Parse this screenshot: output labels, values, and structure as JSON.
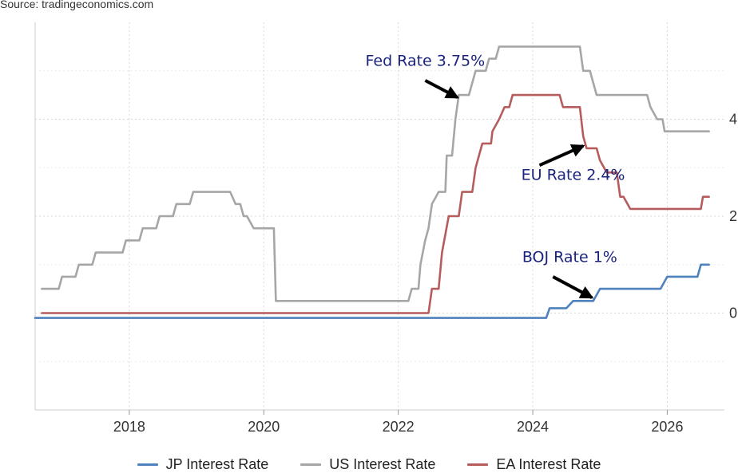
{
  "source": "Source: tradingeconomics.com",
  "chart_data": {
    "type": "line",
    "title": "",
    "xlabel": "",
    "ylabel": "",
    "xlim": [
      2016.6,
      2026.85
    ],
    "ylim": [
      -2,
      6
    ],
    "x_ticks": [
      "2018",
      "2020",
      "2022",
      "2024",
      "2026"
    ],
    "y_ticks": [
      "0",
      "2",
      "4"
    ],
    "grid": true,
    "legend_position": "bottom",
    "series": [
      {
        "name": "JP Interest Rate",
        "color": "#4f81bd",
        "points": [
          [
            2016.6,
            -0.1
          ],
          [
            2024.2,
            -0.1
          ],
          [
            2024.25,
            0.1
          ],
          [
            2024.5,
            0.1
          ],
          [
            2024.6,
            0.25
          ],
          [
            2024.9,
            0.25
          ],
          [
            2025.0,
            0.5
          ],
          [
            2025.9,
            0.5
          ],
          [
            2026.0,
            0.75
          ],
          [
            2026.45,
            0.75
          ],
          [
            2026.5,
            1.0
          ],
          [
            2026.62,
            1.0
          ]
        ]
      },
      {
        "name": "US Interest Rate",
        "color": "#a6a6a6",
        "points": [
          [
            2016.7,
            0.5
          ],
          [
            2016.95,
            0.5
          ],
          [
            2017.0,
            0.75
          ],
          [
            2017.2,
            0.75
          ],
          [
            2017.25,
            1.0
          ],
          [
            2017.45,
            1.0
          ],
          [
            2017.5,
            1.25
          ],
          [
            2017.9,
            1.25
          ],
          [
            2017.95,
            1.5
          ],
          [
            2018.15,
            1.5
          ],
          [
            2018.2,
            1.75
          ],
          [
            2018.4,
            1.75
          ],
          [
            2018.45,
            2.0
          ],
          [
            2018.65,
            2.0
          ],
          [
            2018.7,
            2.25
          ],
          [
            2018.9,
            2.25
          ],
          [
            2018.95,
            2.5
          ],
          [
            2019.5,
            2.5
          ],
          [
            2019.58,
            2.25
          ],
          [
            2019.65,
            2.25
          ],
          [
            2019.7,
            2.0
          ],
          [
            2019.75,
            2.0
          ],
          [
            2019.85,
            1.75
          ],
          [
            2020.15,
            1.75
          ],
          [
            2020.18,
            0.25
          ],
          [
            2022.15,
            0.25
          ],
          [
            2022.2,
            0.5
          ],
          [
            2022.3,
            0.5
          ],
          [
            2022.33,
            1.0
          ],
          [
            2022.4,
            1.5
          ],
          [
            2022.45,
            1.75
          ],
          [
            2022.5,
            2.25
          ],
          [
            2022.6,
            2.5
          ],
          [
            2022.7,
            2.5
          ],
          [
            2022.72,
            3.25
          ],
          [
            2022.8,
            3.25
          ],
          [
            2022.85,
            4.0
          ],
          [
            2022.9,
            4.5
          ],
          [
            2023.05,
            4.5
          ],
          [
            2023.1,
            4.75
          ],
          [
            2023.15,
            5.0
          ],
          [
            2023.3,
            5.0
          ],
          [
            2023.35,
            5.25
          ],
          [
            2023.45,
            5.25
          ],
          [
            2023.5,
            5.5
          ],
          [
            2024.7,
            5.5
          ],
          [
            2024.75,
            5.0
          ],
          [
            2024.85,
            5.0
          ],
          [
            2024.9,
            4.75
          ],
          [
            2024.95,
            4.5
          ],
          [
            2025.7,
            4.5
          ],
          [
            2025.75,
            4.25
          ],
          [
            2025.85,
            4.0
          ],
          [
            2025.93,
            4.0
          ],
          [
            2025.96,
            3.75
          ],
          [
            2026.62,
            3.75
          ]
        ]
      },
      {
        "name": "EA Interest Rate",
        "color": "#b65c5c",
        "points": [
          [
            2016.7,
            0.0
          ],
          [
            2022.45,
            0.0
          ],
          [
            2022.5,
            0.5
          ],
          [
            2022.6,
            0.5
          ],
          [
            2022.65,
            1.25
          ],
          [
            2022.75,
            2.0
          ],
          [
            2022.9,
            2.0
          ],
          [
            2022.95,
            2.5
          ],
          [
            2023.1,
            2.5
          ],
          [
            2023.15,
            3.0
          ],
          [
            2023.25,
            3.5
          ],
          [
            2023.38,
            3.5
          ],
          [
            2023.4,
            3.75
          ],
          [
            2023.5,
            4.0
          ],
          [
            2023.58,
            4.25
          ],
          [
            2023.65,
            4.25
          ],
          [
            2023.7,
            4.5
          ],
          [
            2024.4,
            4.5
          ],
          [
            2024.45,
            4.25
          ],
          [
            2024.7,
            4.25
          ],
          [
            2024.75,
            3.65
          ],
          [
            2024.8,
            3.4
          ],
          [
            2024.95,
            3.4
          ],
          [
            2025.0,
            3.15
          ],
          [
            2025.1,
            2.9
          ],
          [
            2025.25,
            2.9
          ],
          [
            2025.3,
            2.4
          ],
          [
            2025.35,
            2.4
          ],
          [
            2025.45,
            2.15
          ],
          [
            2026.5,
            2.15
          ],
          [
            2026.53,
            2.4
          ],
          [
            2026.62,
            2.4
          ]
        ]
      }
    ],
    "annotations": [
      {
        "text": "Fed Rate 3.75%",
        "color": "#1a237e",
        "x": 2022.4,
        "y": 5.1,
        "arrow_from": [
          2022.4,
          4.8
        ],
        "arrow_to": [
          2022.88,
          4.45
        ]
      },
      {
        "text": "EU Rate 2.4%",
        "color": "#1a237e",
        "x": 2024.6,
        "y": 2.75,
        "arrow_from": [
          2024.1,
          3.05
        ],
        "arrow_to": [
          2024.75,
          3.45
        ]
      },
      {
        "text": "BOJ Rate 1%",
        "color": "#1a237e",
        "x": 2024.55,
        "y": 1.05,
        "arrow_from": [
          2024.3,
          0.75
        ],
        "arrow_to": [
          2024.88,
          0.32
        ]
      }
    ]
  }
}
